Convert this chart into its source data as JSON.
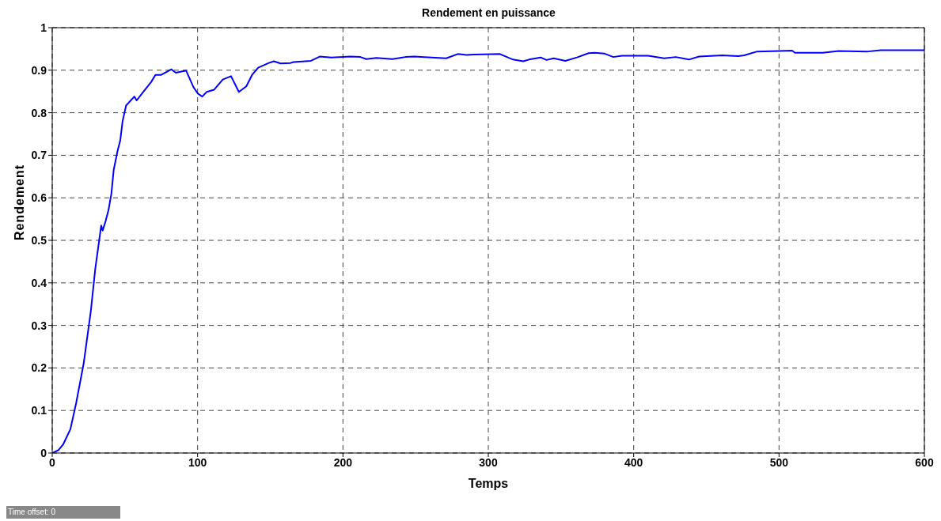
{
  "chart_data": {
    "type": "line",
    "title": "Rendement en puissance",
    "xlabel": "Temps",
    "ylabel": "Rendement",
    "x": [
      0,
      4.4,
      7.5,
      12.5,
      16.5,
      21.6,
      26.6,
      29.6,
      33.7,
      34.7,
      36.7,
      38.7,
      40.7,
      42.3,
      44.8,
      46.8,
      48.4,
      50.8,
      56.5,
      58.1,
      62.9,
      68,
      71,
      75,
      82,
      85,
      92.1,
      97.2,
      100.2,
      103.2,
      106.3,
      111.3,
      117.3,
      123,
      128.4,
      133.5,
      137.5,
      141.7,
      149,
      152.5,
      157,
      164,
      166,
      178,
      184,
      192,
      200,
      205,
      212,
      216,
      223,
      234,
      243,
      249,
      261,
      271,
      279,
      285,
      290,
      308,
      317,
      324,
      328,
      336,
      340,
      345,
      353,
      361,
      369,
      373,
      380,
      386,
      392,
      399.5,
      410,
      421,
      429,
      438,
      445,
      461,
      472,
      476,
      485,
      500,
      509,
      511,
      530,
      541,
      561,
      570,
      573,
      600
    ],
    "series": [
      {
        "color": "#0000ff",
        "values": [
          0,
          0.007,
          0.02,
          0.056,
          0.118,
          0.21,
          0.335,
          0.433,
          0.535,
          0.523,
          0.545,
          0.571,
          0.61,
          0.666,
          0.708,
          0.735,
          0.78,
          0.817,
          0.838,
          0.829,
          0.85,
          0.872,
          0.889,
          0.889,
          0.902,
          0.894,
          0.899,
          0.86,
          0.845,
          0.838,
          0.849,
          0.854,
          0.878,
          0.886,
          0.849,
          0.862,
          0.889,
          0.906,
          0.917,
          0.921,
          0.916,
          0.917,
          0.919,
          0.922,
          0.932,
          0.93,
          0.931,
          0.932,
          0.931,
          0.926,
          0.929,
          0.926,
          0.931,
          0.932,
          0.93,
          0.928,
          0.938,
          0.936,
          0.937,
          0.938,
          0.925,
          0.921,
          0.925,
          0.93,
          0.924,
          0.928,
          0.922,
          0.93,
          0.94,
          0.941,
          0.939,
          0.931,
          0.934,
          0.934,
          0.934,
          0.928,
          0.931,
          0.925,
          0.932,
          0.935,
          0.933,
          0.935,
          0.944,
          0.945,
          0.946,
          0.941,
          0.941,
          0.945,
          0.944,
          0.947,
          0.947,
          0.947
        ]
      }
    ],
    "xlim": [
      0,
      600
    ],
    "xticks": [
      0,
      100,
      200,
      300,
      400,
      500,
      600
    ],
    "ylim": [
      0,
      1
    ],
    "yticks": [
      0,
      0.1,
      0.2,
      0.3,
      0.4,
      0.5,
      0.6,
      0.7,
      0.8,
      0.9,
      1
    ],
    "grid": true,
    "legend": false,
    "marker": "none",
    "line_style": "solid",
    "annotations": [
      "Time offset: 0"
    ]
  }
}
